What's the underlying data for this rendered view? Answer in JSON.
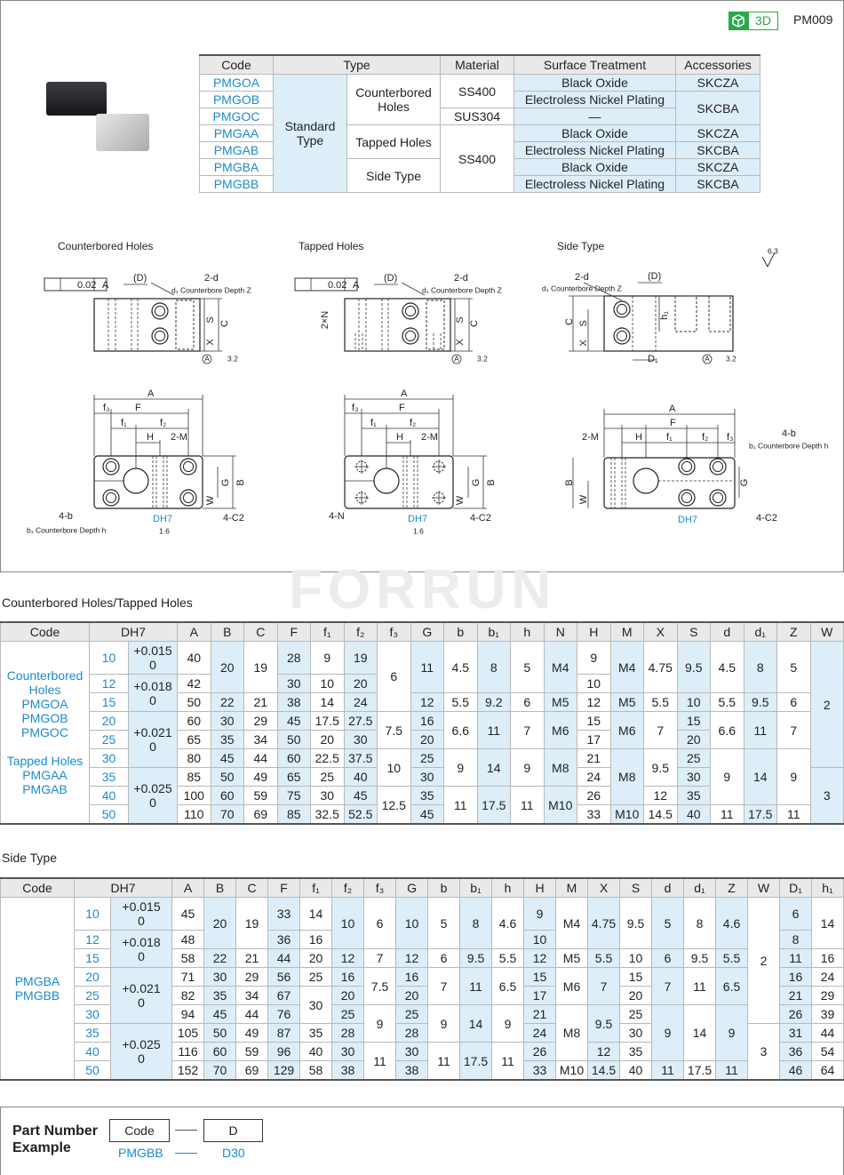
{
  "header": {
    "badge": "3D",
    "code": "PM009"
  },
  "type_table": {
    "columns": [
      "Code",
      "Type",
      "Material",
      "Surface Treatment",
      "Accessories"
    ],
    "rows": [
      [
        "PMGOA",
        "Standard Type",
        "Counterbored Holes",
        "SS400",
        "Black Oxide",
        "SKCZA"
      ],
      [
        "PMGOB",
        null,
        null,
        null,
        "Electroless Nickel Plating",
        "SKCBA"
      ],
      [
        "PMGOC",
        null,
        null,
        "SUS304",
        "—",
        null
      ],
      [
        "PMGAA",
        null,
        "Tapped Holes",
        "SS400",
        "Black Oxide",
        "SKCZA"
      ],
      [
        "PMGAB",
        null,
        null,
        null,
        "Electroless Nickel Plating",
        "SKCBA"
      ],
      [
        "PMGBA",
        null,
        "Side Type",
        null,
        "Black Oxide",
        "SKCZA"
      ],
      [
        "PMGBB",
        null,
        null,
        null,
        "Electroless Nickel Plating",
        "SKCBA"
      ]
    ]
  },
  "drawings": [
    {
      "title": "Counterbored Holes",
      "labels": [
        "0.02",
        "A",
        "(D)",
        "2-d",
        "d₁ Counterbore Depth Z",
        "S",
        "C",
        "X",
        "A",
        "3.2",
        "A",
        "F",
        "f₃",
        "f₁",
        "f₂",
        "H",
        "2-M",
        "G",
        "B",
        "W",
        "4-b",
        "b₁ Counterbore Depth h",
        "DH7",
        "1.6",
        "4-C2"
      ]
    },
    {
      "title": "Tapped Holes",
      "labels": [
        "0.02",
        "A",
        "(D)",
        "2-d",
        "d₁ Counterbore Depth Z",
        "2×N",
        "S",
        "C",
        "X",
        "A",
        "3.2",
        "A",
        "F",
        "f₃",
        "f₁",
        "f₂",
        "H",
        "2-M",
        "G",
        "B",
        "W",
        "4-N",
        "DH7",
        "1.6",
        "4-C2"
      ]
    },
    {
      "title": "Side Type",
      "labels": [
        "6.3",
        "2-d",
        "(D)",
        "d₁ Counterbore Depth Z",
        "h₁",
        "C",
        "S",
        "X",
        "D₁",
        "A",
        "3.2",
        "A",
        "F",
        "H",
        "f₁",
        "f₂",
        "f₃",
        "2-M",
        "4-b",
        "b₁ Counterbore Depth h",
        "B",
        "W",
        "G",
        "DH7",
        "4-C2"
      ]
    }
  ],
  "watermark": "FORRUN",
  "dimension_tables": [
    {
      "title": "Counterbored Holes/Tapped Holes",
      "columns": [
        "Code",
        "DH7",
        "A",
        "B",
        "C",
        "F",
        "f₁",
        "f₂",
        "f₃",
        "G",
        "b",
        "b₁",
        "h",
        "N",
        "H",
        "M",
        "X",
        "S",
        "d",
        "d₁",
        "Z",
        "W"
      ],
      "rows": [
        [
          [
            "Counterbored Holes",
            "PMGOA",
            "PMGOB",
            "PMGOC",
            "Tapped Holes",
            "PMGAA",
            "PMGAB"
          ],
          "10",
          [
            "+0.015",
            "0"
          ],
          "40",
          "20",
          "19",
          "28",
          "9",
          "19",
          "6",
          "11",
          "4.5",
          "8",
          "5",
          "M4",
          "9",
          "M4",
          "4.75",
          "9.5",
          "4.5",
          "8",
          "5",
          "2"
        ],
        [
          null,
          "12",
          [
            "+0.018",
            "0"
          ],
          "42",
          null,
          null,
          "30",
          "10",
          "20",
          null,
          null,
          null,
          null,
          null,
          null,
          "10",
          null,
          null,
          null,
          null,
          null,
          null,
          null
        ],
        [
          null,
          "15",
          null,
          "50",
          "22",
          "21",
          "38",
          "14",
          "24",
          null,
          "12",
          "5.5",
          "9.2",
          "6",
          "M5",
          "12",
          "M5",
          "5.5",
          "10",
          "5.5",
          "9.5",
          "6",
          null
        ],
        [
          null,
          "20",
          [
            "+0.021",
            "0"
          ],
          "60",
          "30",
          "29",
          "45",
          "17.5",
          "27.5",
          "7.5",
          "16",
          "6.6",
          "11",
          "7",
          "M6",
          "15",
          "M6",
          "7",
          "15",
          "6.6",
          "11",
          "7",
          null
        ],
        [
          null,
          "25",
          null,
          "65",
          "35",
          "34",
          "50",
          "20",
          "30",
          null,
          "20",
          null,
          null,
          null,
          null,
          "17",
          null,
          null,
          "20",
          null,
          null,
          null,
          null
        ],
        [
          null,
          "30",
          null,
          "80",
          "45",
          "44",
          "60",
          "22.5",
          "37.5",
          "10",
          "25",
          "9",
          "14",
          "9",
          "M8",
          "21",
          "M8",
          "9.5",
          "25",
          "9",
          "14",
          "9",
          null
        ],
        [
          null,
          "35",
          [
            "+0.025",
            "0"
          ],
          "85",
          "50",
          "49",
          "65",
          "25",
          "40",
          null,
          "30",
          null,
          null,
          null,
          null,
          "24",
          null,
          null,
          "30",
          null,
          null,
          null,
          "3"
        ],
        [
          null,
          "40",
          null,
          "100",
          "60",
          "59",
          "75",
          "30",
          "45",
          "12.5",
          "35",
          "11",
          "17.5",
          "11",
          "M10",
          "26",
          null,
          "12",
          "35",
          null,
          null,
          null,
          null
        ],
        [
          null,
          "50",
          null,
          "110",
          "70",
          "69",
          "85",
          "32.5",
          "52.5",
          null,
          "45",
          null,
          null,
          null,
          null,
          "33",
          "M10",
          "14.5",
          "40",
          "11",
          "17.5",
          "11",
          null
        ]
      ]
    },
    {
      "title": "Side Type",
      "columns": [
        "Code",
        "DH7",
        "A",
        "B",
        "C",
        "F",
        "f₁",
        "f₂",
        "f₃",
        "G",
        "b",
        "b₁",
        "h",
        "H",
        "M",
        "X",
        "S",
        "d",
        "d₁",
        "Z",
        "W",
        "D₁",
        "h₁"
      ],
      "rows": [
        [
          [
            "PMGBA",
            "PMGBB"
          ],
          "10",
          [
            "+0.015",
            "0"
          ],
          "45",
          "20",
          "19",
          "33",
          "14",
          "10",
          "6",
          "10",
          "5",
          "8",
          "4.6",
          "9",
          "M4",
          "4.75",
          "9.5",
          "5",
          "8",
          "4.6",
          "2",
          "6",
          "14"
        ],
        [
          null,
          "12",
          [
            "+0.018",
            "0"
          ],
          "48",
          null,
          null,
          "36",
          "16",
          null,
          null,
          null,
          null,
          null,
          null,
          "10",
          null,
          null,
          null,
          null,
          null,
          null,
          null,
          "8",
          null
        ],
        [
          null,
          "15",
          null,
          "58",
          "22",
          "21",
          "44",
          "20",
          "12",
          "7",
          "12",
          "6",
          "9.5",
          "5.5",
          "12",
          "M5",
          "5.5",
          "10",
          "6",
          "9.5",
          "5.5",
          null,
          "11",
          "16"
        ],
        [
          null,
          "20",
          [
            "+0.021",
            "0"
          ],
          "71",
          "30",
          "29",
          "56",
          "25",
          "16",
          "7.5",
          "16",
          "7",
          "11",
          "6.5",
          "15",
          "M6",
          "7",
          "15",
          "7",
          "11",
          "6.5",
          null,
          "16",
          "24"
        ],
        [
          null,
          "25",
          null,
          "82",
          "35",
          "34",
          "67",
          "30",
          "20",
          null,
          "20",
          null,
          null,
          null,
          "17",
          null,
          null,
          "20",
          null,
          null,
          null,
          null,
          "21",
          "29"
        ],
        [
          null,
          "30",
          null,
          "94",
          "45",
          "44",
          "76",
          null,
          "25",
          "9",
          "25",
          "9",
          "14",
          "9",
          "21",
          "M8",
          "9.5",
          "25",
          "9",
          "14",
          "9",
          null,
          "26",
          "39"
        ],
        [
          null,
          "35",
          [
            "+0.025",
            "0"
          ],
          "105",
          "50",
          "49",
          "87",
          "35",
          "28",
          null,
          "28",
          null,
          null,
          null,
          "24",
          null,
          null,
          "30",
          null,
          null,
          null,
          "3",
          "31",
          "44"
        ],
        [
          null,
          "40",
          null,
          "116",
          "60",
          "59",
          "96",
          "40",
          "30",
          "11",
          "30",
          "11",
          "17.5",
          "11",
          "26",
          null,
          "12",
          "35",
          null,
          null,
          null,
          null,
          "36",
          "54"
        ],
        [
          null,
          "50",
          null,
          "152",
          "70",
          "69",
          "129",
          "58",
          "38",
          null,
          "38",
          null,
          null,
          null,
          "33",
          "M10",
          "14.5",
          "40",
          "11",
          "17.5",
          "11",
          null,
          "46",
          "64"
        ]
      ]
    }
  ],
  "part_number": {
    "title": [
      "Part Number",
      "Example"
    ],
    "fields": [
      "Code",
      "D"
    ],
    "example": [
      "PMGBB",
      "D30"
    ]
  }
}
